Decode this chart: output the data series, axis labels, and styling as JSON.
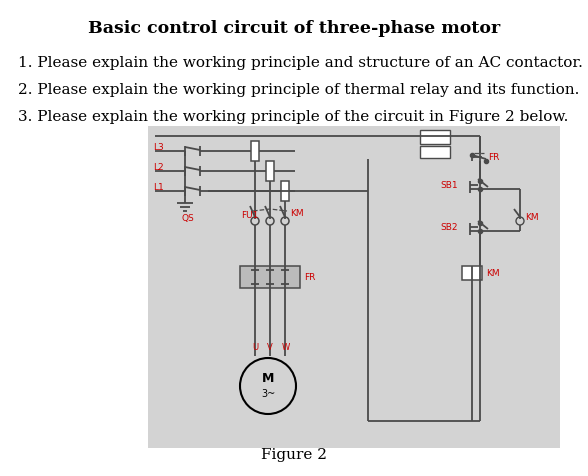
{
  "title": "Basic control circuit of three-phase motor",
  "questions": [
    "1. Please explain the working principle and structure of an AC contactor.",
    "2. Please explain the working principle of thermal relay and its function.",
    "3. Please explain the working principle of the circuit in Figure 2 below."
  ],
  "figure_caption": "Figure 2",
  "bg_color": "#ffffff",
  "diagram_bg": "#d3d3d3",
  "line_color": "#4a4a4a",
  "text_color": "#000000",
  "red_label_color": "#cc0000",
  "title_fontsize": 12.5,
  "question_fontsize": 11,
  "caption_fontsize": 11
}
